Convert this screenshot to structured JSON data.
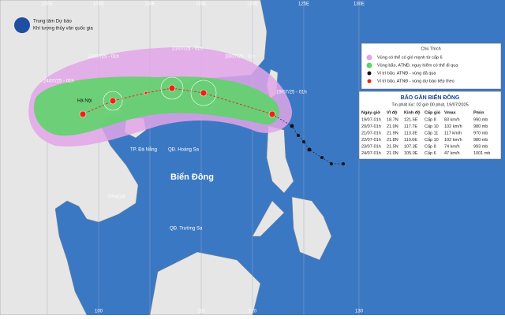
{
  "header": {
    "agency": "Trung tâm Dự báo",
    "agency_sub": "Khí tượng thủy văn quốc gia"
  },
  "grid_labels": {
    "top": [
      "100E",
      "105E",
      "110E",
      "115E",
      "120E",
      "125E",
      "130E"
    ],
    "bottom": [
      "100",
      "110",
      "120",
      "130"
    ]
  },
  "places": {
    "sea": "Biển Đông",
    "hanoi": "Hà Nội",
    "danang": "TP. Đà Nẵng",
    "hoangsa": "QĐ. Hoàng Sa",
    "truongsa": "QĐ. Trường Sa",
    "hcm": "TP.HCM"
  },
  "track_labels": [
    "24/07/25 - 01h",
    "23/07/25 - 01h",
    "21/07/25 - 01h",
    "20/07/25 - 01h",
    "19/07/25 - 01h"
  ],
  "legend": {
    "title": "Chú Thích",
    "items": [
      "Vùng có thể có gió mạnh từ cấp 6",
      "Vùng bão, ATNĐ, nguy hiểm có thể đi qua",
      "Vị trí bão, ATNĐ - vùng đã qua",
      "Vị trí bão, ATNĐ - vùng dự báo tiếp theo"
    ]
  },
  "table": {
    "title": "BÃO GẦN BIỂN ĐÔNG",
    "subtitle": "Tin phát lúc: 02 giờ 00 phút, 19/07/2025",
    "columns": [
      "Ngày-giờ",
      "Vĩ độ",
      "Kinh độ",
      "Cấp gió",
      "Vmax",
      "Pmin"
    ],
    "rows": [
      [
        "19/07-01h",
        "18.7N",
        "121.5E",
        "Cấp 8",
        "83 km/h",
        "990 mb"
      ],
      [
        "20/07-01h",
        "21.0N",
        "117.7E",
        "Cấp 10",
        "102 km/h",
        "980 mb"
      ],
      [
        "21/07-01h",
        "21.9N",
        "113.3E",
        "Cấp 11",
        "117 km/h",
        "970 mb"
      ],
      [
        "22/07-01h",
        "21.8N",
        "110.0E",
        "Cấp 10",
        "102 km/h",
        "980 mb"
      ],
      [
        "23/07-01h",
        "21.5N",
        "107.3E",
        "Cấp 8",
        "74 km/h",
        "993 mb"
      ],
      [
        "24/07-01h",
        "21.0N",
        "105.0E",
        "Cấp 6",
        "47 km/h",
        "1001 mb"
      ]
    ]
  }
}
